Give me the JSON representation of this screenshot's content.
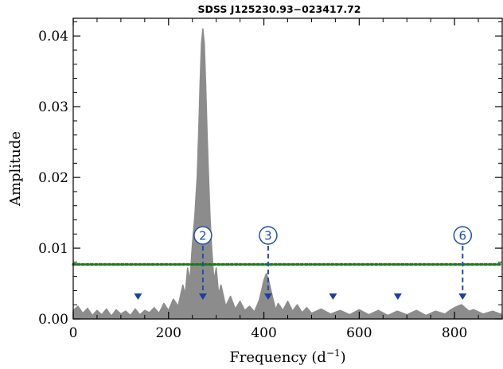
{
  "chart_data": {
    "type": "line",
    "title": "SDSS J125230.93−023417.72",
    "xlabel": "Frequency (d",
    "xlabel_sup": "−1",
    "xlabel_close": ")",
    "ylabel": "Amplitude",
    "xlim": [
      0,
      900
    ],
    "ylim": [
      0,
      0.0425
    ],
    "x_ticks": [
      0,
      200,
      400,
      600,
      800
    ],
    "x_tick_labels": [
      "0",
      "200",
      "400",
      "600",
      "800"
    ],
    "y_ticks": [
      0.0,
      0.01,
      0.02,
      0.03,
      0.04
    ],
    "y_tick_labels": [
      "0.00",
      "0.01",
      "0.02",
      "0.03",
      "0.04"
    ],
    "grid": false,
    "series": [
      {
        "style": "filled-gray-periodogram",
        "color": "#8c8c8c",
        "x": [
          0,
          10,
          20,
          30,
          40,
          50,
          60,
          70,
          80,
          90,
          100,
          110,
          120,
          130,
          140,
          150,
          160,
          170,
          180,
          190,
          200,
          210,
          220,
          230,
          235,
          240,
          245,
          250,
          255,
          260,
          263,
          266,
          269,
          272,
          275,
          278,
          281,
          284,
          287,
          290,
          295,
          300,
          305,
          310,
          320,
          330,
          340,
          350,
          360,
          370,
          380,
          390,
          395,
          400,
          405,
          410,
          415,
          420,
          425,
          430,
          440,
          450,
          460,
          470,
          480,
          490,
          500,
          520,
          540,
          560,
          580,
          600,
          620,
          640,
          660,
          680,
          700,
          720,
          740,
          760,
          780,
          790,
          800,
          810,
          815,
          820,
          830,
          840,
          860,
          880,
          900
        ],
        "values": [
          0.0012,
          0.0018,
          0.0008,
          0.0015,
          0.0005,
          0.0012,
          0.0006,
          0.0014,
          0.0004,
          0.0013,
          0.0007,
          0.0011,
          0.0005,
          0.0014,
          0.0006,
          0.0012,
          0.0009,
          0.0016,
          0.0008,
          0.0022,
          0.0012,
          0.0028,
          0.0018,
          0.0048,
          0.0035,
          0.0072,
          0.0055,
          0.0105,
          0.0145,
          0.02,
          0.026,
          0.033,
          0.039,
          0.041,
          0.039,
          0.033,
          0.026,
          0.02,
          0.0145,
          0.0105,
          0.0055,
          0.0072,
          0.0035,
          0.0048,
          0.0018,
          0.0032,
          0.0014,
          0.0025,
          0.0012,
          0.0018,
          0.001,
          0.0026,
          0.004,
          0.0055,
          0.0064,
          0.0055,
          0.004,
          0.0026,
          0.0013,
          0.0022,
          0.0012,
          0.0025,
          0.0011,
          0.002,
          0.0009,
          0.0016,
          0.0008,
          0.0014,
          0.0007,
          0.0012,
          0.0006,
          0.0013,
          0.0006,
          0.0012,
          0.0005,
          0.0011,
          0.0006,
          0.0012,
          0.0005,
          0.0011,
          0.0007,
          0.0012,
          0.0016,
          0.0019,
          0.002,
          0.0017,
          0.0011,
          0.0013,
          0.0007,
          0.0011,
          0.0006
        ]
      }
    ],
    "threshold": {
      "y": 0.0077,
      "color": "#1a7a1a",
      "style": "dotted"
    },
    "aliases": {
      "color": "#1a3fa0",
      "frequencies": [
        136,
        272,
        409,
        545,
        681,
        817
      ]
    },
    "peak_labels": {
      "color": "#1f4fa8",
      "items": [
        {
          "label": "2",
          "freq": 272
        },
        {
          "label": "3",
          "freq": 409
        },
        {
          "label": "6",
          "freq": 817
        }
      ]
    }
  }
}
